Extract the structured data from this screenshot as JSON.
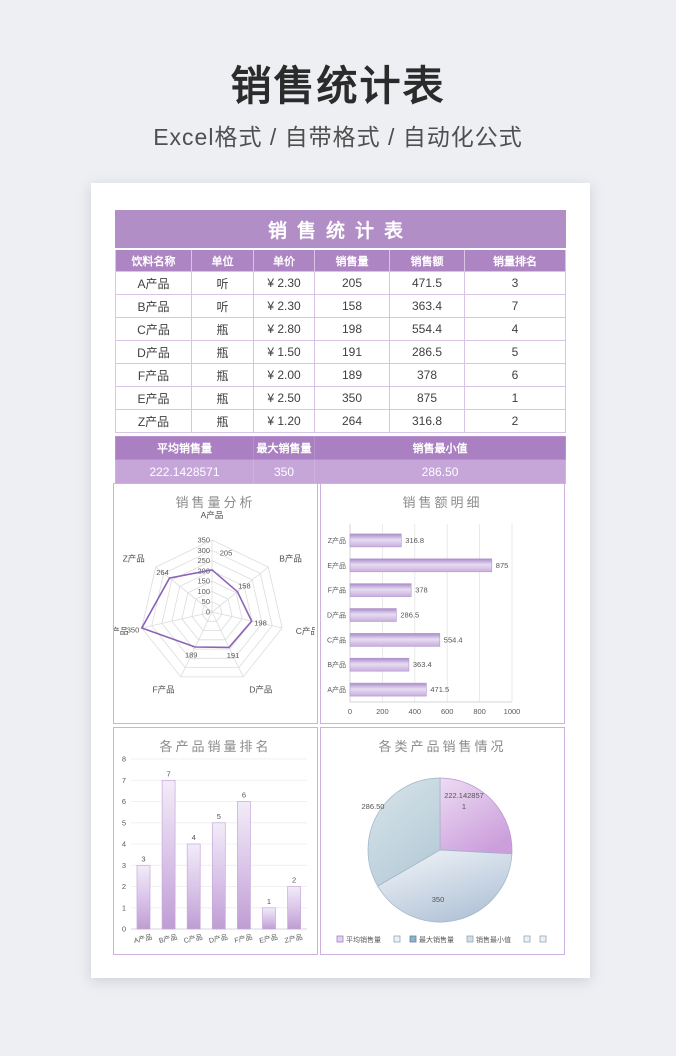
{
  "header": {
    "title": "销售统计表",
    "subtitle": "Excel格式 / 自带格式 / 自动化公式"
  },
  "table": {
    "title": "销售统计表",
    "columns": [
      "饮料名称",
      "单位",
      "单价",
      "销售量",
      "销售额",
      "销量排名"
    ],
    "rows": [
      [
        "A产品",
        "听",
        "¥ 2.30",
        "205",
        "471.5",
        "3"
      ],
      [
        "B产品",
        "听",
        "¥ 2.30",
        "158",
        "363.4",
        "7"
      ],
      [
        "C产品",
        "瓶",
        "¥ 2.80",
        "198",
        "554.4",
        "4"
      ],
      [
        "D产品",
        "瓶",
        "¥ 1.50",
        "191",
        "286.5",
        "5"
      ],
      [
        "F产品",
        "瓶",
        "¥ 2.00",
        "189",
        "378",
        "6"
      ],
      [
        "E产品",
        "瓶",
        "¥ 2.50",
        "350",
        "875",
        "1"
      ],
      [
        "Z产品",
        "瓶",
        "¥ 1.20",
        "264",
        "316.8",
        "2"
      ]
    ],
    "summary": {
      "labels": [
        "平均销售量",
        "最大销售量",
        "销售最小值"
      ],
      "values": [
        "222.1428571",
        "350",
        "286.50"
      ],
      "colspans": [
        2,
        1,
        3
      ]
    }
  },
  "colors": {
    "page_bg": "#edeff3",
    "table_title_bg": "#b28ec6",
    "table_header_bg": "#ad85c3",
    "summary_label_bg": "#aa80c2",
    "summary_value_bg": "#c6a6d8",
    "panel_border": "#cdb2df",
    "radar_line": "#8a63b5",
    "bar_purple": "#c8addc",
    "pie_purple": "#cc9fdc",
    "pie_blue_light": "#b3c4d8",
    "pie_blue": "#b6ccd8"
  },
  "chart_data": [
    {
      "type": "radar",
      "title": "销售量分析",
      "categories": [
        "A产品",
        "B产品",
        "C产品",
        "D产品",
        "F产品",
        "E产品",
        "Z产品"
      ],
      "values": [
        205,
        158,
        198,
        191,
        189,
        350,
        264
      ],
      "r_max": 350,
      "r_step": 50,
      "tick_labels": [
        0,
        50,
        100,
        150,
        200,
        250,
        300,
        350
      ],
      "grid": true
    },
    {
      "type": "bar",
      "title": "销售额明细",
      "categories": [
        "A产品",
        "B产品",
        "C产品",
        "D产品",
        "F产品",
        "E产品",
        "Z产品"
      ],
      "values": [
        471.5,
        363.4,
        554.4,
        286.5,
        378,
        875,
        316.8
      ],
      "xlim": [
        0,
        1000
      ],
      "x_step": 200,
      "grid": true,
      "orientation": "horizontal"
    },
    {
      "type": "bar",
      "subtype": "column",
      "title": "各产品销量排名",
      "categories": [
        "A产品",
        "B产品",
        "C产品",
        "D产品",
        "F产品",
        "E产品",
        "Z产品"
      ],
      "values": [
        3,
        7,
        4,
        5,
        6,
        1,
        2
      ],
      "ylim": [
        0,
        8
      ],
      "y_step": 1,
      "grid": true,
      "orientation": "vertical"
    },
    {
      "type": "pie",
      "title": "各类产品销售情况",
      "values": [
        222.1428571,
        350,
        286.5
      ],
      "label_lines": [
        [
          "222.142857",
          "1"
        ],
        [
          "350"
        ],
        [
          "286.50"
        ]
      ],
      "legend_position": "bottom",
      "legend": [
        {
          "label": "平均销售量",
          "swatch": "purple"
        },
        {
          "label": "",
          "swatch": "gray"
        },
        {
          "label": "最大销售量",
          "swatch": "blue"
        },
        {
          "label": "销售最小值",
          "swatch": "lightblue"
        },
        {
          "label": "",
          "swatch": "gray"
        },
        {
          "label": "",
          "swatch": "gray"
        }
      ]
    }
  ]
}
